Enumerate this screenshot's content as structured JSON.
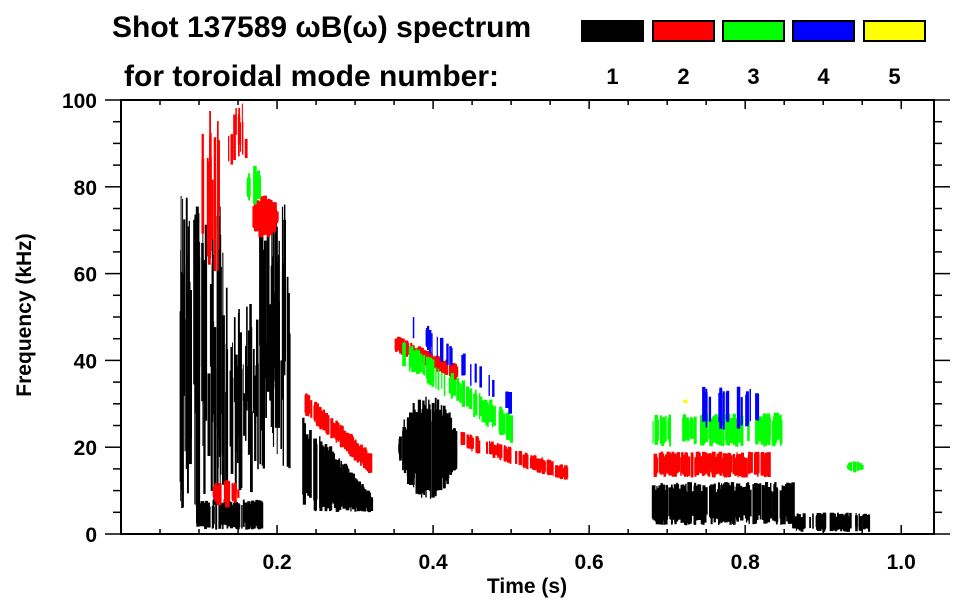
{
  "chart_data": {
    "type": "heatmap",
    "title_line1": "Shot 137589 ωB(ω) spectrum",
    "title_line2": "for toroidal mode number:",
    "xlabel": "Time (s)",
    "ylabel": "Frequency (kHz)",
    "xlim": [
      0.0,
      1.042
    ],
    "ylim": [
      0,
      100
    ],
    "x_ticks": [
      0.2,
      0.4,
      0.6,
      0.8,
      1.0
    ],
    "x_tick_labels": [
      "0.2",
      "0.4",
      "0.6",
      "0.8",
      "1.0"
    ],
    "x_minor_step": 0.05,
    "y_ticks": [
      0,
      20,
      40,
      60,
      80,
      100
    ],
    "y_tick_labels": [
      "0",
      "20",
      "40",
      "60",
      "80",
      "100"
    ],
    "y_minor_step": 5,
    "grid": false,
    "legend_position": "top-right",
    "legend": [
      {
        "mode": "1",
        "color": "#000000"
      },
      {
        "mode": "2",
        "color": "#ff0000"
      },
      {
        "mode": "3",
        "color": "#00ff00"
      },
      {
        "mode": "4",
        "color": "#0000ff"
      },
      {
        "mode": "5",
        "color": "#ffff00"
      }
    ],
    "features": [
      {
        "mode": 1,
        "t": [
          0.075,
          0.135
        ],
        "f": [
          5,
          78
        ],
        "density": 0.85,
        "kind": "streaks"
      },
      {
        "mode": 1,
        "t": [
          0.135,
          0.175
        ],
        "f": [
          8,
          55
        ],
        "density": 0.7,
        "kind": "streaks"
      },
      {
        "mode": 1,
        "t": [
          0.175,
          0.215
        ],
        "f": [
          15,
          76
        ],
        "density": 0.9,
        "kind": "streaks"
      },
      {
        "mode": 1,
        "t": [
          0.095,
          0.18
        ],
        "f": [
          1,
          8
        ],
        "density": 0.8,
        "kind": "band"
      },
      {
        "mode": 1,
        "t": [
          0.23,
          0.32
        ],
        "f": [
          5,
          28
        ],
        "density": 0.9,
        "kind": "tapered"
      },
      {
        "mode": 1,
        "t": [
          0.355,
          0.43
        ],
        "f": [
          8,
          32
        ],
        "density": 0.9,
        "kind": "blob"
      },
      {
        "mode": 1,
        "t": [
          0.68,
          0.86
        ],
        "f": [
          2,
          12
        ],
        "density": 0.9,
        "kind": "band"
      },
      {
        "mode": 1,
        "t": [
          0.86,
          0.96
        ],
        "f": [
          0.5,
          5
        ],
        "density": 0.5,
        "kind": "band"
      },
      {
        "mode": 2,
        "t": [
          0.1,
          0.125
        ],
        "f": [
          60,
          99
        ],
        "density": 0.5,
        "kind": "streaks"
      },
      {
        "mode": 2,
        "t": [
          0.135,
          0.16
        ],
        "f": [
          85,
          100
        ],
        "density": 0.4,
        "kind": "streaks"
      },
      {
        "mode": 2,
        "t": [
          0.165,
          0.2
        ],
        "f": [
          68,
          78
        ],
        "density": 0.85,
        "kind": "blob"
      },
      {
        "mode": 2,
        "t": [
          0.115,
          0.15
        ],
        "f": [
          6,
          13
        ],
        "density": 0.5,
        "kind": "blob"
      },
      {
        "mode": 2,
        "t": [
          0.235,
          0.32
        ],
        "f": [
          16,
          30
        ],
        "density": 0.8,
        "kind": "chirp",
        "f_start": 30,
        "f_end": 16
      },
      {
        "mode": 2,
        "t": [
          0.35,
          0.43
        ],
        "f": [
          36,
          44
        ],
        "density": 0.8,
        "kind": "chirp",
        "f_start": 44,
        "f_end": 37
      },
      {
        "mode": 2,
        "t": [
          0.43,
          0.57
        ],
        "f": [
          14,
          22
        ],
        "density": 0.5,
        "kind": "chirp",
        "f_start": 22,
        "f_end": 14
      },
      {
        "mode": 2,
        "t": [
          0.68,
          0.83
        ],
        "f": [
          13,
          19
        ],
        "density": 0.75,
        "kind": "band"
      },
      {
        "mode": 3,
        "t": [
          0.16,
          0.18
        ],
        "f": [
          75,
          85
        ],
        "density": 0.5,
        "kind": "blob"
      },
      {
        "mode": 3,
        "t": [
          0.36,
          0.5
        ],
        "f": [
          22,
          42
        ],
        "density": 0.4,
        "kind": "chirp",
        "f_start": 42,
        "f_end": 24
      },
      {
        "mode": 3,
        "t": [
          0.68,
          0.85
        ],
        "f": [
          20,
          28
        ],
        "density": 0.45,
        "kind": "band"
      },
      {
        "mode": 3,
        "t": [
          0.93,
          0.95
        ],
        "f": [
          14,
          17
        ],
        "density": 0.5,
        "kind": "blob"
      },
      {
        "mode": 4,
        "t": [
          0.37,
          0.5
        ],
        "f": [
          30,
          48
        ],
        "density": 0.15,
        "kind": "chirp",
        "f_start": 48,
        "f_end": 30
      },
      {
        "mode": 4,
        "t": [
          0.72,
          0.82
        ],
        "f": [
          24,
          34
        ],
        "density": 0.15,
        "kind": "band"
      },
      {
        "mode": 5,
        "t": [
          0.72,
          0.725
        ],
        "f": [
          30,
          31
        ],
        "density": 1.0,
        "kind": "blob"
      }
    ]
  }
}
